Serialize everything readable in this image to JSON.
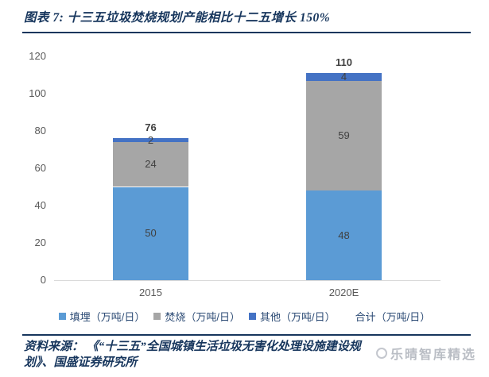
{
  "header": {
    "title": "图表 7: 十三五垃圾焚烧规划产能相比十二五增长 150%"
  },
  "chart_data": {
    "type": "bar",
    "stacked": true,
    "title": "",
    "xlabel": "",
    "ylabel": "",
    "categories": [
      "2015",
      "2020E"
    ],
    "series": [
      {
        "name": "填埋（万吨/日）",
        "color": "#5B9BD5",
        "values": [
          50,
          48
        ]
      },
      {
        "name": "焚烧（万吨/日）",
        "color": "#A6A6A6",
        "values": [
          24,
          59
        ]
      },
      {
        "name": "其他（万吨/日）",
        "color": "#4472C4",
        "values": [
          2,
          4
        ]
      }
    ],
    "totals": {
      "name": "合计（万吨/日）",
      "values": [
        76,
        110
      ]
    },
    "ylim": [
      0,
      120
    ],
    "yticks": [
      0,
      20,
      40,
      60,
      80,
      100,
      120
    ],
    "grid": false,
    "legend_position": "bottom"
  },
  "footer": {
    "source_line1": "资料来源： 《“十三五”全国城镇生活垃圾无害化处理设施建设规",
    "source_line2": "划》、国盛证券研究所"
  },
  "watermark": {
    "text": "乐晴智库精选"
  },
  "colors": {
    "accent_navy": "#17365D",
    "tick_label": "#595959",
    "data_label": "#404040",
    "axis_line": "#D9D9D9"
  }
}
